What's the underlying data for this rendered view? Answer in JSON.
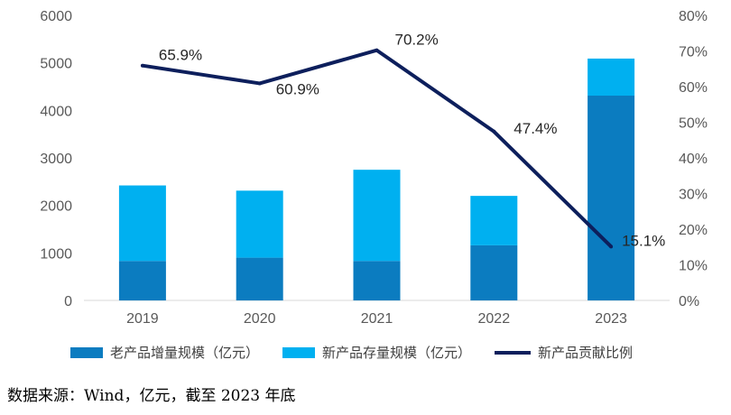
{
  "chart_data": {
    "type": "bar",
    "stacked": true,
    "categories": [
      "2019",
      "2020",
      "2021",
      "2022",
      "2023"
    ],
    "series": [
      {
        "name": "老产品增量规模（亿元）",
        "type": "bar",
        "axis": "left",
        "color": "#0b7cc0",
        "values": [
          830,
          900,
          830,
          1160,
          4310
        ]
      },
      {
        "name": "新产品存量规模（亿元）",
        "type": "bar",
        "axis": "left",
        "color": "#00b0f0",
        "values": [
          1590,
          1410,
          1920,
          1040,
          780
        ]
      },
      {
        "name": "新产品贡献比例",
        "type": "line",
        "axis": "right",
        "color": "#0d1f5c",
        "values": [
          65.9,
          60.9,
          70.2,
          47.4,
          15.1
        ],
        "labels": [
          "65.9%",
          "60.9%",
          "70.2%",
          "47.4%",
          "15.1%"
        ]
      }
    ],
    "y_left": {
      "min": 0,
      "max": 6000,
      "ticks": [
        "0",
        "1000",
        "2000",
        "3000",
        "4000",
        "5000",
        "6000"
      ]
    },
    "y_right": {
      "min": 0,
      "max": 80,
      "ticks": [
        "0%",
        "10%",
        "20%",
        "30%",
        "40%",
        "50%",
        "60%",
        "70%",
        "80%"
      ]
    },
    "grid": false,
    "legend_position": "bottom"
  },
  "source_note": "数据来源：Wind，亿元，截至 2023 年底"
}
